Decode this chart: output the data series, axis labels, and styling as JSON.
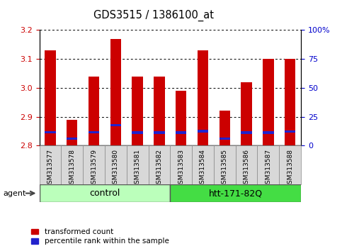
{
  "title": "GDS3515 / 1386100_at",
  "samples": [
    "GSM313577",
    "GSM313578",
    "GSM313579",
    "GSM313580",
    "GSM313581",
    "GSM313582",
    "GSM313583",
    "GSM313584",
    "GSM313585",
    "GSM313586",
    "GSM313587",
    "GSM313588"
  ],
  "group1_label": "control",
  "group1_color": "#bbffbb",
  "group1_dark_color": "#44cc44",
  "group2_label": "htt-171-82Q",
  "group2_color": "#44dd44",
  "group2_dark_color": "#22aa22",
  "n_group1": 6,
  "n_group2": 6,
  "transformed_count": [
    3.13,
    2.89,
    3.04,
    3.17,
    3.04,
    3.04,
    2.99,
    3.13,
    2.92,
    3.02,
    3.1,
    3.1
  ],
  "percentile_rank_yval": [
    2.847,
    2.825,
    2.847,
    2.87,
    2.845,
    2.845,
    2.845,
    2.85,
    2.825,
    2.845,
    2.845,
    2.848
  ],
  "blue_bar_height": 0.008,
  "ylim_left": [
    2.8,
    3.2
  ],
  "ylim_right": [
    0,
    100
  ],
  "yticks_left": [
    2.8,
    2.9,
    3.0,
    3.1,
    3.2
  ],
  "yticks_right": [
    0,
    25,
    50,
    75,
    100
  ],
  "bar_color": "#cc0000",
  "blue_color": "#2222cc",
  "background_color": "#ffffff",
  "left_label_color": "#cc0000",
  "right_label_color": "#0000cc",
  "bar_width": 0.5,
  "bar_bottom": 2.8,
  "agent_label": "agent"
}
